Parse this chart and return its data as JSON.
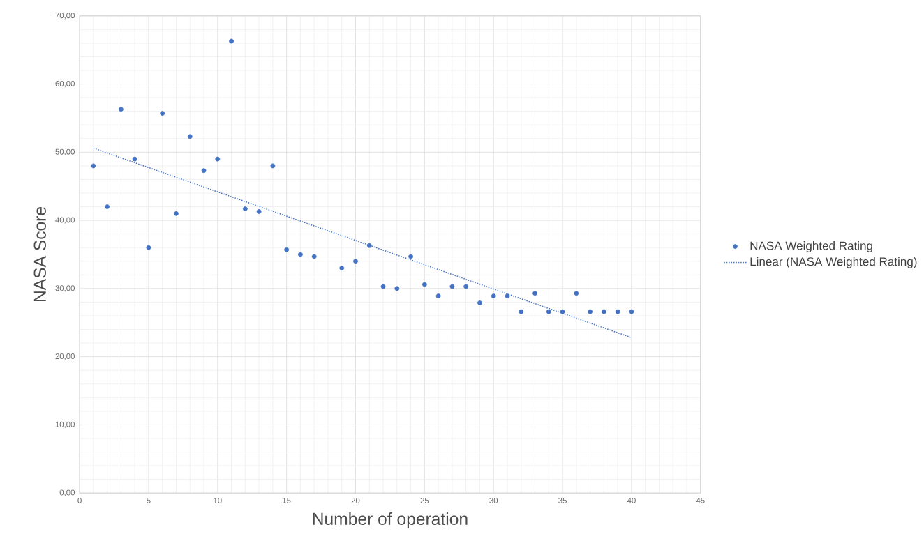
{
  "chart_data": {
    "type": "scatter",
    "xlabel": "Number of operation",
    "ylabel": "NASA Score",
    "xlim": [
      0,
      45
    ],
    "ylim": [
      0,
      70
    ],
    "xticks": [
      0,
      5,
      10,
      15,
      20,
      25,
      30,
      35,
      40,
      45
    ],
    "yticks": [
      {
        "value": 0,
        "label": "0,00"
      },
      {
        "value": 10,
        "label": "10,00"
      },
      {
        "value": 20,
        "label": "20,00"
      },
      {
        "value": 30,
        "label": "30,00"
      },
      {
        "value": 40,
        "label": "40,00"
      },
      {
        "value": 50,
        "label": "50,00"
      },
      {
        "value": 60,
        "label": "60,00"
      },
      {
        "value": 70,
        "label": "70,00"
      }
    ],
    "grid": true,
    "legend": "right",
    "series": [
      {
        "name": "NASA Weighted Rating",
        "marker": "circle",
        "color": "#4472c4",
        "x": [
          1,
          2,
          3,
          4,
          5,
          6,
          7,
          8,
          9,
          10,
          11,
          12,
          13,
          14,
          15,
          16,
          17,
          19,
          20,
          21,
          22,
          23,
          24,
          25,
          26,
          27,
          28,
          29,
          30,
          31,
          32,
          33,
          34,
          35,
          36,
          37,
          38,
          39,
          40
        ],
        "values": [
          48,
          42,
          56.3,
          49,
          36,
          55.7,
          41,
          52.3,
          47.3,
          49,
          66.3,
          41.7,
          41.3,
          48,
          35.7,
          35,
          34.7,
          33,
          34,
          36.3,
          30.3,
          30,
          34.7,
          30.6,
          28.9,
          30.3,
          30.3,
          27.9,
          28.9,
          28.9,
          26.6,
          29.3,
          26.6,
          26.6,
          29.3,
          26.6,
          26.6,
          26.6,
          26.6
        ]
      },
      {
        "name": "Linear (NASA Weighted Rating)",
        "type": "line",
        "line_style": "dotted",
        "marker": "none",
        "color": "#4472c4",
        "x": [
          1,
          40
        ],
        "values": [
          50.6,
          22.8
        ]
      }
    ]
  }
}
